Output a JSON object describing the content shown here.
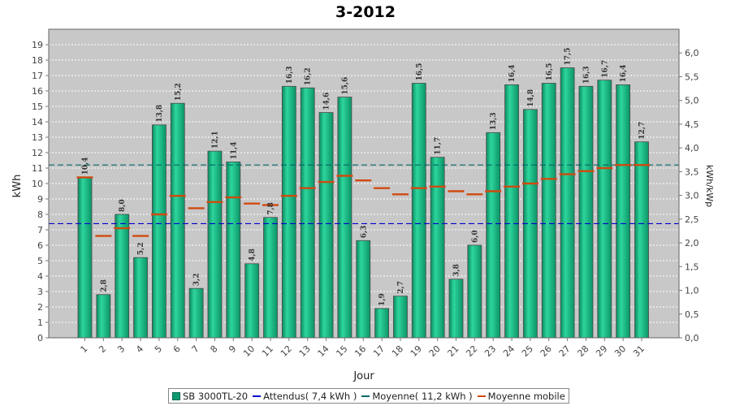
{
  "chart_data": {
    "type": "bar",
    "title": "3-2012",
    "xlabel": "Jour",
    "ylabel": "kWh",
    "y2label": "kWh/kWp",
    "ylim": [
      0,
      20
    ],
    "y2lim": [
      0,
      6.5
    ],
    "yticks": [
      "0",
      "1",
      "2",
      "3",
      "4",
      "5",
      "6",
      "7",
      "8",
      "9",
      "10",
      "11",
      "12",
      "13",
      "14",
      "15",
      "16",
      "17",
      "18",
      "19"
    ],
    "y2ticks": [
      "0,0",
      "0,5",
      "1,0",
      "1,5",
      "2,0",
      "2,5",
      "3,0",
      "3,5",
      "4,0",
      "4,5",
      "5,0",
      "5,5",
      "6,0"
    ],
    "categories": [
      "1",
      "2",
      "3",
      "4",
      "5",
      "6",
      "7",
      "8",
      "9",
      "10",
      "11",
      "12",
      "13",
      "14",
      "15",
      "16",
      "17",
      "18",
      "19",
      "20",
      "21",
      "22",
      "23",
      "24",
      "25",
      "26",
      "27",
      "28",
      "29",
      "30",
      "31"
    ],
    "series": [
      {
        "name": "SB 3000TL-20",
        "values": [
          10.4,
          2.8,
          8.0,
          5.2,
          13.8,
          15.2,
          3.2,
          12.1,
          11.4,
          4.8,
          7.8,
          16.3,
          16.2,
          14.6,
          15.6,
          6.3,
          1.9,
          2.7,
          16.5,
          11.7,
          3.8,
          6.0,
          13.3,
          16.4,
          14.8,
          16.5,
          17.5,
          16.3,
          16.7,
          16.4,
          12.7
        ],
        "labels": [
          "10,4",
          "2,8",
          "8,0",
          "5,2",
          "13,8",
          "15,2",
          "3,2",
          "12,1",
          "11,4",
          "4,8",
          "7,8",
          "16,3",
          "16,2",
          "14,6",
          "15,6",
          "6,3",
          "1,9",
          "2,7",
          "16,5",
          "11,7",
          "3,8",
          "6,0",
          "13,3",
          "16,4",
          "14,8",
          "16,5",
          "17,5",
          "16,3",
          "16,7",
          "16,4",
          "12,7"
        ],
        "color": "#0d9a70"
      },
      {
        "name": "Moyenne mobile",
        "values": [
          10.4,
          6.6,
          7.1,
          6.6,
          8.0,
          9.2,
          8.4,
          8.8,
          9.1,
          8.7,
          8.6,
          9.2,
          9.7,
          10.1,
          10.5,
          10.2,
          9.7,
          9.3,
          9.7,
          9.8,
          9.5,
          9.3,
          9.5,
          9.8,
          10.0,
          10.3,
          10.6,
          10.8,
          11.0,
          11.2,
          11.2
        ],
        "color": "#d04a10"
      }
    ],
    "reference_lines": [
      {
        "name": "Attendus( 7,4 kWh )",
        "value": 7.4,
        "color": "#0000cc"
      },
      {
        "name": "Moyenne( 11,2 kWh )",
        "value": 11.2,
        "color": "#006666"
      }
    ],
    "grid": true,
    "legend_position": "bottom"
  }
}
